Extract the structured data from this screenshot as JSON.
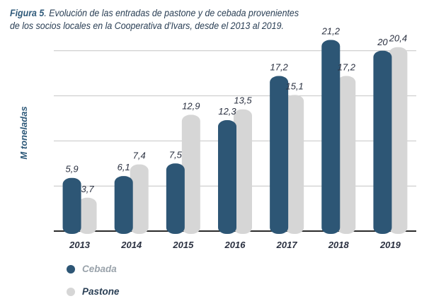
{
  "caption": {
    "figure_label": "Figura 5",
    "text_line1": ". Evolución de las entradas de pastone y de cebada provenientes",
    "text_line2": "de los socios locales en la Cooperativa d'Ivars, desde el 2013 al 2019."
  },
  "chart_data": {
    "type": "bar",
    "ylabel": "M toneladas",
    "ylim": [
      0,
      25
    ],
    "grid": true,
    "legend_placement": "bottom-left",
    "categories": [
      "2013",
      "2014",
      "2015",
      "2016",
      "2017",
      "2018",
      "2019"
    ],
    "series": [
      {
        "name": "Cebada",
        "color": "#2d5675",
        "values": [
          5.9,
          6.1,
          7.5,
          12.3,
          17.2,
          21.2,
          20
        ],
        "labels": [
          "5,9",
          "6,1",
          "7,5",
          "12,3",
          "17,2",
          "21,2",
          "20"
        ]
      },
      {
        "name": "Pastone",
        "color": "#d6d6d6",
        "values": [
          3.7,
          7.4,
          12.9,
          13.5,
          15.1,
          17.2,
          20.4
        ],
        "labels": [
          "3,7",
          "7,4",
          "12,9",
          "13,5",
          "15,1",
          "17,2",
          "20,4"
        ]
      }
    ]
  }
}
